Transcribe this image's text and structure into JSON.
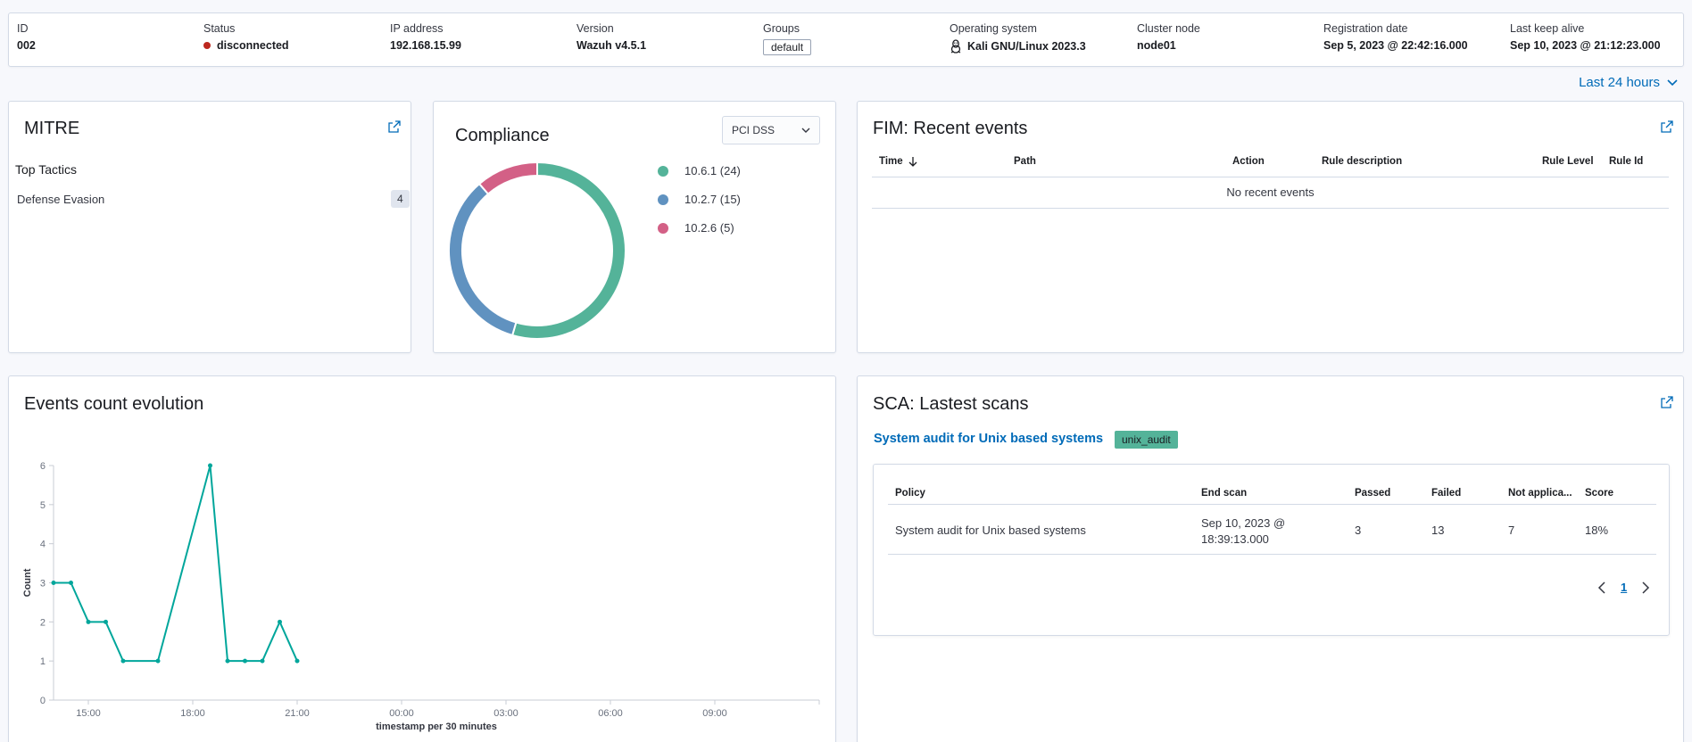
{
  "agent": {
    "id_label": "ID",
    "id": "002",
    "status_label": "Status",
    "status": "disconnected",
    "status_color": "#bd271e",
    "ip_label": "IP address",
    "ip": "192.168.15.99",
    "version_label": "Version",
    "version": "Wazuh v4.5.1",
    "groups_label": "Groups",
    "group": "default",
    "os_label": "Operating system",
    "os": "Kali GNU/Linux 2023.3",
    "os_icon": "linux-penguin-icon",
    "cluster_label": "Cluster node",
    "cluster": "node01",
    "reg_label": "Registration date",
    "reg": "Sep 5, 2023 @ 22:42:16.000",
    "keepalive_label": "Last keep alive",
    "keepalive": "Sep 10, 2023 @ 21:12:23.000"
  },
  "time_picker": {
    "label": "Last 24 hours"
  },
  "mitre": {
    "title": "MITRE",
    "subtitle": "Top Tactics",
    "items": [
      {
        "label": "Defense Evasion",
        "count": "4"
      }
    ]
  },
  "compliance": {
    "title": "Compliance",
    "select_value": "PCI DSS",
    "legend": [
      {
        "label": "10.6.1 (24)",
        "color": "#54b399"
      },
      {
        "label": "10.2.7 (15)",
        "color": "#6092c0"
      },
      {
        "label": "10.2.6 (5)",
        "color": "#d36086"
      }
    ]
  },
  "fim": {
    "title": "FIM: Recent events",
    "columns": [
      "Time",
      "Path",
      "Action",
      "Rule description",
      "Rule Level",
      "Rule Id"
    ],
    "empty": "No recent events"
  },
  "events": {
    "title": "Events count evolution"
  },
  "sca": {
    "title": "SCA: Lastest scans",
    "policy_link": "System audit for Unix based systems",
    "policy_badge": "unix_audit",
    "columns": [
      "Policy",
      "End scan",
      "Passed",
      "Failed",
      "Not applica...",
      "Score"
    ],
    "row": {
      "policy": "System audit for Unix based systems",
      "end_scan_1": "Sep 10, 2023 @",
      "end_scan_2": "18:39:13.000",
      "passed": "3",
      "failed": "13",
      "na": "7",
      "score": "18%"
    },
    "page": "1"
  },
  "chart_data": [
    {
      "type": "pie",
      "title": "Compliance",
      "categories": [
        "10.6.1",
        "10.2.7",
        "10.2.6"
      ],
      "values": [
        24,
        15,
        5
      ],
      "colors": [
        "#54b399",
        "#6092c0",
        "#d36086"
      ],
      "legend": "right"
    },
    {
      "type": "line",
      "title": "Events count evolution",
      "xlabel": "timestamp per 30 minutes",
      "ylabel": "Count",
      "x_ticks": [
        "15:00",
        "18:00",
        "21:00",
        "00:00",
        "03:00",
        "06:00",
        "09:00"
      ],
      "x_range": [
        "14:00",
        "12:00"
      ],
      "ylim": [
        0,
        6
      ],
      "y_ticks": [
        "0",
        "1",
        "2",
        "3",
        "4",
        "5",
        "6"
      ],
      "x": [
        "14:00",
        "14:30",
        "15:00",
        "15:30",
        "16:00",
        "17:00",
        "18:30",
        "19:00",
        "19:30",
        "20:00",
        "20:30",
        "21:00"
      ],
      "values": [
        3,
        3,
        2,
        2,
        1,
        1,
        6,
        1,
        1,
        1,
        2,
        1
      ],
      "color": "#00a69b",
      "grid": false
    }
  ]
}
